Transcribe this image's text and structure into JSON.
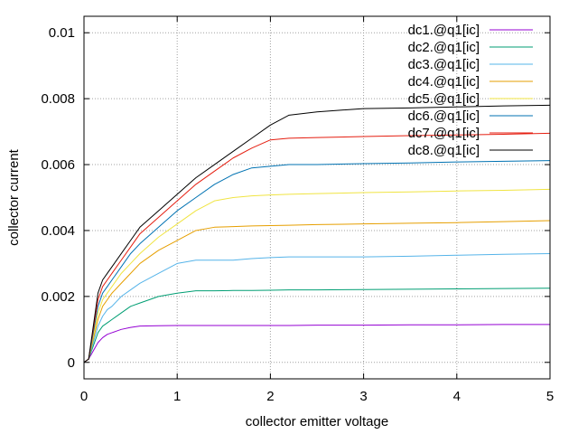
{
  "chart_data": {
    "type": "line",
    "title": "",
    "xlabel": "collector emitter voltage",
    "ylabel": "collector current",
    "xlim": [
      0,
      5
    ],
    "ylim": [
      -0.0005,
      0.0105
    ],
    "xticks": [
      0,
      1,
      2,
      3,
      4,
      5
    ],
    "xtick_labels": [
      "0",
      "1",
      "2",
      "3",
      "4",
      "5"
    ],
    "yticks": [
      0,
      0.002,
      0.004,
      0.006,
      0.008,
      0.01
    ],
    "ytick_labels": [
      "0",
      "0.002",
      "0.004",
      "0.006",
      "0.008",
      "0.01"
    ],
    "grid": true,
    "legend_position": "top-right",
    "x": [
      0,
      0.05,
      0.1,
      0.15,
      0.2,
      0.25,
      0.3,
      0.4,
      0.5,
      0.6,
      0.8,
      1.0,
      1.2,
      1.4,
      1.6,
      1.8,
      2.0,
      2.2,
      2.5,
      3.0,
      3.5,
      4.0,
      4.5,
      5.0
    ],
    "series": [
      {
        "name": "dc1.@q1[ic]",
        "color": "#9400d3",
        "values": [
          0,
          0.0001,
          0.00035,
          0.0006,
          0.00075,
          0.00085,
          0.0009,
          0.001,
          0.00106,
          0.0011,
          0.00111,
          0.00112,
          0.00112,
          0.00112,
          0.00112,
          0.00112,
          0.00112,
          0.00112,
          0.00113,
          0.00113,
          0.00114,
          0.00114,
          0.00115,
          0.00115
        ]
      },
      {
        "name": "dc2.@q1[ic]",
        "color": "#009e73",
        "values": [
          0,
          0.0001,
          0.0005,
          0.0009,
          0.0011,
          0.0012,
          0.0013,
          0.0015,
          0.0017,
          0.0018,
          0.002,
          0.0021,
          0.00217,
          0.00217,
          0.00218,
          0.00218,
          0.00219,
          0.0022,
          0.0022,
          0.00221,
          0.00222,
          0.00223,
          0.00224,
          0.00225
        ]
      },
      {
        "name": "dc3.@q1[ic]",
        "color": "#56b4e9",
        "values": [
          0,
          0.0001,
          0.0006,
          0.0011,
          0.0014,
          0.0016,
          0.0017,
          0.002,
          0.0022,
          0.0024,
          0.0027,
          0.003,
          0.0031,
          0.0031,
          0.0031,
          0.00315,
          0.00318,
          0.0032,
          0.0032,
          0.0032,
          0.00322,
          0.00325,
          0.00328,
          0.0033
        ]
      },
      {
        "name": "dc4.@q1[ic]",
        "color": "#e69f00",
        "values": [
          0,
          0.0001,
          0.0007,
          0.0013,
          0.0017,
          0.0019,
          0.0021,
          0.0024,
          0.0027,
          0.003,
          0.0034,
          0.0037,
          0.004,
          0.0041,
          0.00412,
          0.00414,
          0.00415,
          0.00416,
          0.00418,
          0.0042,
          0.00422,
          0.00424,
          0.00427,
          0.0043
        ]
      },
      {
        "name": "dc5.@q1[ic]",
        "color": "#f0e442",
        "values": [
          0,
          0.0001,
          0.0008,
          0.0015,
          0.0019,
          0.0021,
          0.0023,
          0.0027,
          0.003,
          0.0033,
          0.0038,
          0.0042,
          0.0046,
          0.0049,
          0.005,
          0.00505,
          0.00508,
          0.0051,
          0.00512,
          0.00515,
          0.00517,
          0.0052,
          0.00522,
          0.00525
        ]
      },
      {
        "name": "dc6.@q1[ic]",
        "color": "#0072b2",
        "values": [
          0,
          0.0001,
          0.0009,
          0.0017,
          0.0021,
          0.0023,
          0.0025,
          0.0029,
          0.0033,
          0.0036,
          0.0041,
          0.0046,
          0.005,
          0.0054,
          0.0057,
          0.0059,
          0.00595,
          0.006,
          0.006,
          0.00603,
          0.00605,
          0.00608,
          0.0061,
          0.00612
        ]
      },
      {
        "name": "dc7.@q1[ic]",
        "color": "#e51e10",
        "values": [
          0,
          0.0001,
          0.001,
          0.0019,
          0.0023,
          0.0025,
          0.0027,
          0.0031,
          0.0035,
          0.0039,
          0.0044,
          0.0049,
          0.0054,
          0.0058,
          0.0062,
          0.0065,
          0.00675,
          0.0068,
          0.00682,
          0.00685,
          0.00688,
          0.0069,
          0.00692,
          0.00695
        ]
      },
      {
        "name": "dc8.@q1[ic]",
        "color": "#000000",
        "values": [
          0,
          0.0001,
          0.0011,
          0.0021,
          0.0025,
          0.0027,
          0.0029,
          0.0033,
          0.0037,
          0.0041,
          0.0046,
          0.0051,
          0.0056,
          0.006,
          0.0064,
          0.0068,
          0.0072,
          0.0075,
          0.0076,
          0.0077,
          0.00772,
          0.00775,
          0.00778,
          0.0078
        ]
      }
    ]
  }
}
